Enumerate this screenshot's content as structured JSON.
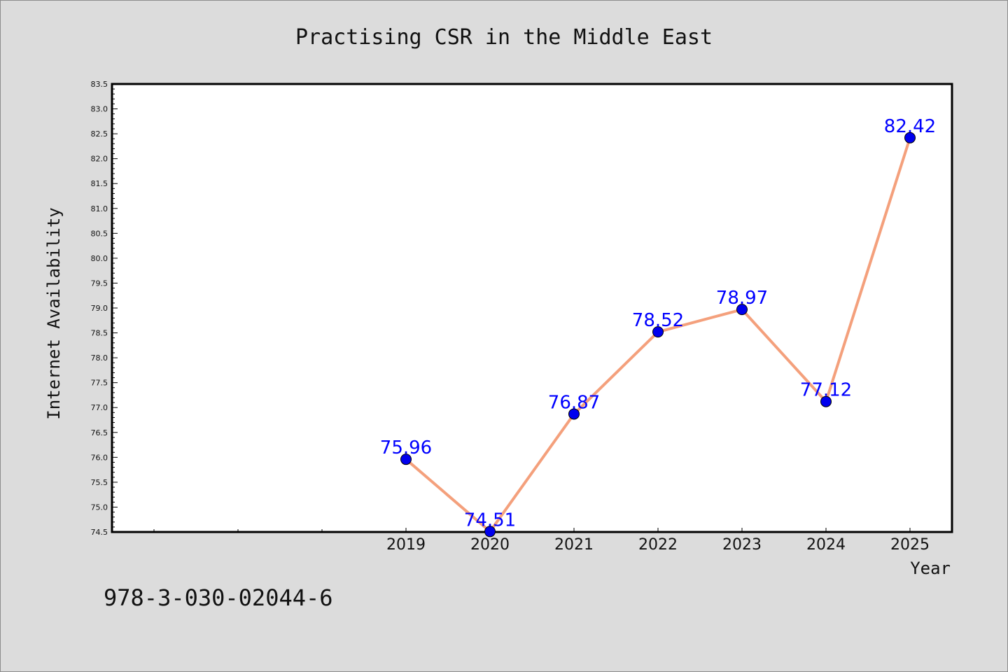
{
  "chart_data": {
    "type": "line",
    "title": "Practising CSR in the Middle East",
    "xlabel": "Year",
    "ylabel": "Internet Availability",
    "categories": [
      "2019",
      "2020",
      "2021",
      "2022",
      "2023",
      "2024",
      "2025"
    ],
    "series": [
      {
        "values": [
          75.96,
          74.51,
          76.87,
          78.52,
          78.97,
          77.12,
          82.42
        ],
        "labels": [
          "75.96",
          "74.51",
          "76.87",
          "78.52",
          "78.97",
          "77.12",
          "82.42"
        ]
      }
    ],
    "ylim": [
      74.5,
      83.5
    ],
    "yticks": [
      "74.5",
      "75.0",
      "75.5",
      "76.0",
      "76.5",
      "77.0",
      "77.5",
      "78.0",
      "78.5",
      "79.0",
      "79.5",
      "80.0",
      "80.5",
      "81.0",
      "81.5",
      "82.0",
      "82.5",
      "83.0",
      "83.5"
    ],
    "grid": false,
    "line_color": "#f4a07c",
    "marker_color": "#0000ee",
    "label_color": "#0000ff",
    "axes_background": "#ffffff",
    "figure_background": "#dcdcdc"
  },
  "footer": {
    "isbn": "978-3-030-02044-6"
  }
}
